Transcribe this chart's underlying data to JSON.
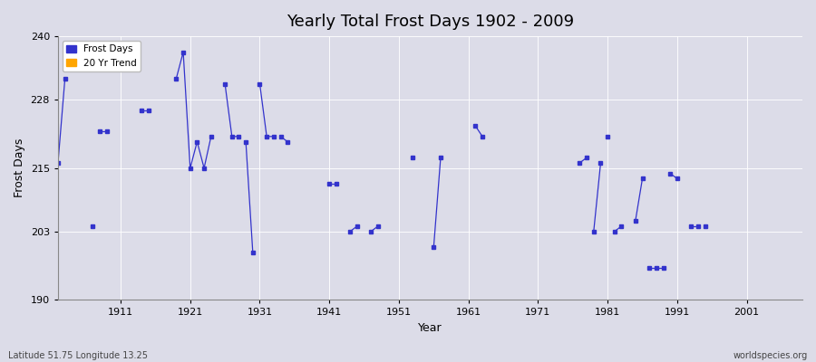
{
  "title": "Yearly Total Frost Days 1902 - 2009",
  "xlabel": "Year",
  "ylabel": "Frost Days",
  "xlim": [
    1902,
    2009
  ],
  "ylim": [
    190,
    240
  ],
  "yticks": [
    190,
    203,
    215,
    228,
    240
  ],
  "xticks": [
    1911,
    1921,
    1931,
    1941,
    1951,
    1961,
    1971,
    1981,
    1991,
    2001
  ],
  "bg_color": "#dcdce8",
  "plot_bg_color": "#dcdce8",
  "line_color": "#3333cc",
  "legend_frost_color": "#3333cc",
  "legend_trend_color": "#ffa500",
  "lat_lon_text": "Latitude 51.75 Longitude 13.25",
  "source_text": "worldspecies.org",
  "segments": [
    {
      "years": [
        1902,
        1903
      ],
      "values": [
        216,
        232
      ]
    },
    {
      "years": [
        1907
      ],
      "values": [
        204
      ]
    },
    {
      "years": [
        1908,
        1909
      ],
      "values": [
        222,
        222
      ]
    },
    {
      "years": [
        1914,
        1915
      ],
      "values": [
        226,
        226
      ]
    },
    {
      "years": [
        1919,
        1920,
        1921,
        1922,
        1923,
        1924
      ],
      "values": [
        232,
        237,
        215,
        220,
        215,
        221
      ]
    },
    {
      "years": [
        1926,
        1927,
        1928
      ],
      "values": [
        231,
        221,
        221
      ]
    },
    {
      "years": [
        1929,
        1930
      ],
      "values": [
        220,
        199
      ]
    },
    {
      "years": [
        1931,
        1932,
        1933
      ],
      "values": [
        231,
        221,
        221
      ]
    },
    {
      "years": [
        1934,
        1935
      ],
      "values": [
        221,
        220
      ]
    },
    {
      "years": [
        1941,
        1942
      ],
      "values": [
        212,
        212
      ]
    },
    {
      "years": [
        1944,
        1945
      ],
      "values": [
        203,
        204
      ]
    },
    {
      "years": [
        1947,
        1948
      ],
      "values": [
        203,
        204
      ]
    },
    {
      "years": [
        1953
      ],
      "values": [
        217
      ]
    },
    {
      "years": [
        1956,
        1957
      ],
      "values": [
        200,
        217
      ]
    },
    {
      "years": [
        1962,
        1963
      ],
      "values": [
        223,
        221
      ]
    },
    {
      "years": [
        1977,
        1978
      ],
      "values": [
        216,
        217
      ]
    },
    {
      "years": [
        1979,
        1980
      ],
      "values": [
        203,
        216
      ]
    },
    {
      "years": [
        1981
      ],
      "values": [
        221
      ]
    },
    {
      "years": [
        1982,
        1983
      ],
      "values": [
        203,
        204
      ]
    },
    {
      "years": [
        1985,
        1986
      ],
      "values": [
        205,
        213
      ]
    },
    {
      "years": [
        1987,
        1988,
        1989
      ],
      "values": [
        196,
        196,
        196
      ]
    },
    {
      "years": [
        1990,
        1991
      ],
      "values": [
        214,
        213
      ]
    },
    {
      "years": [
        1993,
        1994
      ],
      "values": [
        204,
        204
      ]
    },
    {
      "years": [
        1995
      ],
      "values": [
        204
      ]
    }
  ]
}
